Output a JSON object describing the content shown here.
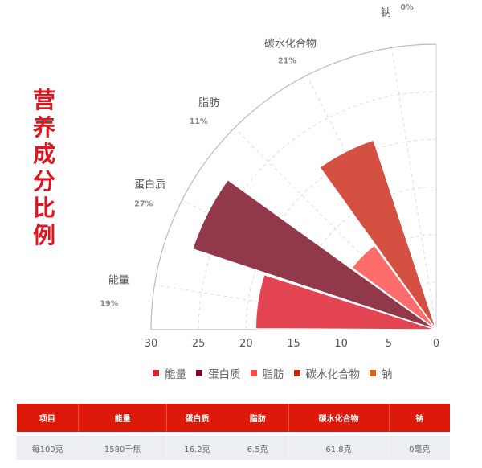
{
  "title": "营养成分比例",
  "chart_data": {
    "type": "polar-bar",
    "angular_range_deg": 90,
    "radial_axis": {
      "min": 0,
      "max": 30,
      "ticks": [
        30,
        25,
        20,
        15,
        10,
        5,
        0
      ],
      "reversed": true
    },
    "categories": [
      "能量",
      "蛋白质",
      "脂肪",
      "碳水化合物",
      "钠"
    ],
    "percent_labels": [
      "19%",
      "27%",
      "11%",
      "21%",
      "0%"
    ],
    "values": [
      19,
      27,
      11,
      21,
      0
    ],
    "bar_colors": [
      "#e0323f",
      "#852437",
      "#ff5c5c",
      "#cf3e2c",
      "#e06010"
    ],
    "legend": {
      "placement": "bottom",
      "items": [
        {
          "label": "能量",
          "color": "#e01e2c"
        },
        {
          "label": "蛋白质",
          "color": "#7d0a22"
        },
        {
          "label": "脂肪",
          "color": "#ff4a4a"
        },
        {
          "label": "碳水化合物",
          "color": "#cc2a10"
        },
        {
          "label": "钠",
          "color": "#e06010"
        }
      ]
    },
    "grid": true
  },
  "table": {
    "headers": [
      "项目",
      "能量",
      "蛋白质",
      "脂肪",
      "碳水化合物",
      "钠"
    ],
    "rows": [
      [
        "每100克",
        "1580千焦",
        "16.2克",
        "6.5克",
        "61.8克",
        "0毫克"
      ]
    ]
  }
}
